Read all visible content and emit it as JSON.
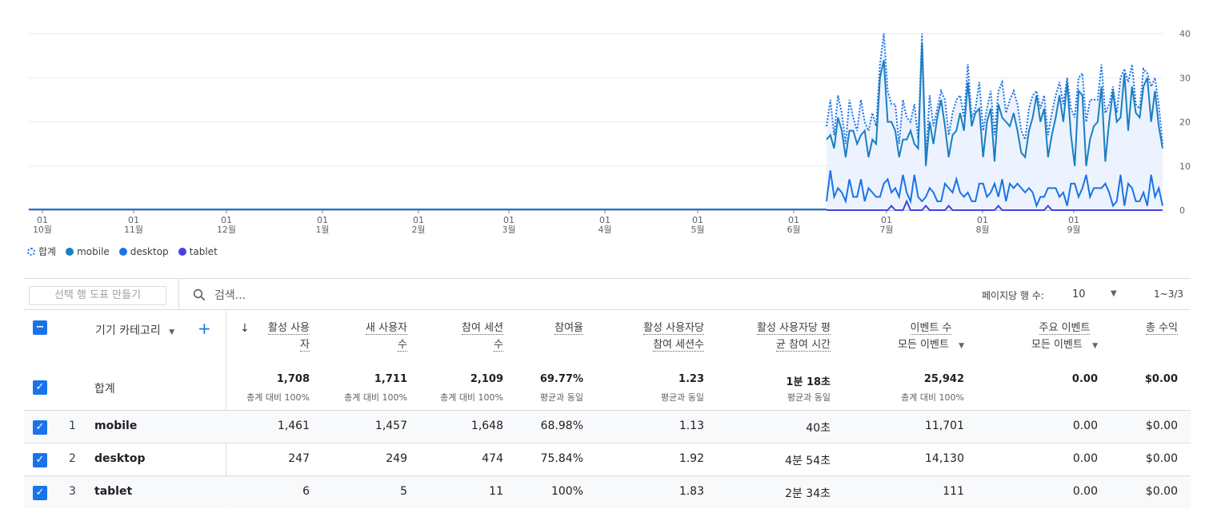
{
  "chart_data": {
    "type": "line",
    "x_ticks": [
      {
        "day": "01",
        "month": "10월"
      },
      {
        "day": "01",
        "month": "11월"
      },
      {
        "day": "01",
        "month": "12월"
      },
      {
        "day": "01",
        "month": "1월"
      },
      {
        "day": "01",
        "month": "2월"
      },
      {
        "day": "01",
        "month": "3월"
      },
      {
        "day": "01",
        "month": "4월"
      },
      {
        "day": "01",
        "month": "5월"
      },
      {
        "day": "01",
        "month": "6월"
      },
      {
        "day": "01",
        "month": "7월"
      },
      {
        "day": "01",
        "month": "8월"
      },
      {
        "day": "01",
        "month": "9월"
      }
    ],
    "y_ticks": [
      "40",
      "30",
      "20",
      "10",
      "0"
    ],
    "ylim": [
      0,
      40
    ],
    "grid": true,
    "legend_position": "bottom-left",
    "series": [
      {
        "name": "합계",
        "color": "#1a73e8",
        "style": "dotted-area",
        "values": [
          19,
          25,
          17,
          26,
          22,
          15,
          25,
          21,
          18,
          25,
          20,
          18,
          22,
          19,
          33,
          40,
          27,
          24,
          24,
          15,
          25,
          21,
          20,
          24,
          16,
          40,
          12,
          26,
          19,
          23,
          27,
          25,
          17,
          22,
          25,
          26,
          21,
          33,
          21,
          23,
          29,
          18,
          23,
          27,
          17,
          27,
          29,
          22,
          25,
          27,
          24,
          18,
          16,
          23,
          26,
          27,
          23,
          26,
          17,
          22,
          26,
          29,
          24,
          30,
          23,
          21,
          30,
          31,
          20,
          25,
          25,
          25,
          33,
          22,
          24,
          28,
          22,
          30,
          32,
          29,
          33,
          24,
          23,
          32,
          31,
          28,
          30,
          24,
          15
        ]
      },
      {
        "name": "mobile",
        "color": "#1a7fc1",
        "style": "solid",
        "values": [
          16,
          17,
          14,
          21,
          18,
          12,
          18,
          18,
          15,
          17,
          18,
          12,
          16,
          15,
          30,
          34,
          20,
          20,
          18,
          12,
          16,
          16,
          18,
          15,
          14,
          38,
          10,
          20,
          15,
          21,
          25,
          19,
          12,
          17,
          18,
          22,
          18,
          29,
          19,
          22,
          23,
          12,
          20,
          23,
          11,
          24,
          21,
          20,
          19,
          22,
          18,
          13,
          12,
          18,
          21,
          26,
          20,
          23,
          12,
          17,
          21,
          26,
          20,
          29,
          17,
          10,
          27,
          26,
          10,
          16,
          19,
          20,
          28,
          11,
          20,
          27,
          20,
          21,
          31,
          18,
          28,
          22,
          21,
          28,
          30,
          20,
          27,
          19,
          14
        ]
      },
      {
        "name": "desktop",
        "color": "#1a73e8",
        "style": "solid",
        "values": [
          2,
          9,
          3,
          5,
          4,
          2,
          7,
          3,
          3,
          7,
          2,
          5,
          4,
          3,
          3,
          6,
          7,
          4,
          5,
          3,
          8,
          4,
          2,
          8,
          3,
          2,
          3,
          5,
          4,
          2,
          2,
          6,
          5,
          4,
          7,
          4,
          3,
          4,
          2,
          2,
          6,
          6,
          3,
          4,
          6,
          3,
          7,
          2,
          6,
          5,
          6,
          5,
          4,
          5,
          4,
          1,
          3,
          3,
          5,
          5,
          5,
          3,
          4,
          1,
          6,
          6,
          3,
          5,
          8,
          3,
          5,
          5,
          5,
          6,
          4,
          1,
          2,
          8,
          1,
          6,
          5,
          2,
          2,
          4,
          1,
          8,
          3,
          5,
          1
        ]
      },
      {
        "name": "tablet",
        "color": "#4a3fe0",
        "style": "solid",
        "values": [
          0,
          0,
          0,
          0,
          0,
          0,
          0,
          0,
          0,
          0,
          0,
          0,
          0,
          0,
          0,
          0,
          0,
          1,
          0,
          0,
          0,
          2,
          0,
          0,
          0,
          0,
          1,
          0,
          0,
          0,
          0,
          0,
          1,
          0,
          0,
          0,
          0,
          0,
          0,
          0,
          0,
          0,
          0,
          0,
          0,
          1,
          0,
          0,
          0,
          0,
          0,
          0,
          0,
          0,
          0,
          0,
          0,
          0,
          1,
          0,
          0,
          0,
          0,
          0,
          0,
          0,
          0,
          0,
          0,
          0,
          0,
          0,
          0,
          0,
          0,
          0,
          0,
          0,
          0,
          0,
          0,
          0,
          0,
          0,
          0,
          0,
          0,
          0,
          0
        ]
      }
    ]
  },
  "legend": [
    {
      "label": "합계",
      "color": "#1a73e8",
      "dashed": true
    },
    {
      "label": "mobile",
      "color": "#1a7fc1",
      "dashed": false
    },
    {
      "label": "desktop",
      "color": "#1a73e8",
      "dashed": false
    },
    {
      "label": "tablet",
      "color": "#4a3fe0",
      "dashed": false
    }
  ],
  "toolbar": {
    "pivot_label": "선택 행 도표 만들기",
    "search_placeholder": "검색...",
    "rows_per_page_label": "페이지당 행 수:",
    "rows_per_page_value": "10",
    "range": "1~3/3"
  },
  "table": {
    "dimension_header": "기기 카테고리",
    "columns": [
      {
        "line1": "활성 사용",
        "line2": "자"
      },
      {
        "line1": "새 사용자",
        "line2": "수"
      },
      {
        "line1": "참여 세션",
        "line2": "수"
      },
      {
        "line1": "참여율",
        "line2": ""
      },
      {
        "line1": "활성 사용자당",
        "line2": "참여 세션수"
      },
      {
        "line1": "활성 사용자당 평",
        "line2": "균 참여 시간"
      },
      {
        "line1": "이벤트 수",
        "line2": "모든 이벤트"
      },
      {
        "line1": "주요 이벤트",
        "line2": "모든 이벤트"
      },
      {
        "line1": "총 수익",
        "line2": ""
      }
    ],
    "total": {
      "label": "합계",
      "values": [
        "1,708",
        "1,711",
        "2,109",
        "69.77%",
        "1.23",
        "1분 18초",
        "25,942",
        "0.00",
        "$0.00"
      ],
      "subs": [
        "총계 대비 100%",
        "총계 대비 100%",
        "총계 대비 100%",
        "평균과 동일",
        "평균과 동일",
        "평균과 동일",
        "총계 대비 100%",
        "",
        ""
      ]
    },
    "rows": [
      {
        "index": "1",
        "name": "mobile",
        "values": [
          "1,461",
          "1,457",
          "1,648",
          "68.98%",
          "1.13",
          "40초",
          "11,701",
          "0.00",
          "$0.00"
        ]
      },
      {
        "index": "2",
        "name": "desktop",
        "values": [
          "247",
          "249",
          "474",
          "75.84%",
          "1.92",
          "4분 54초",
          "14,130",
          "0.00",
          "$0.00"
        ]
      },
      {
        "index": "3",
        "name": "tablet",
        "values": [
          "6",
          "5",
          "11",
          "100%",
          "1.83",
          "2분 34초",
          "111",
          "0.00",
          "$0.00"
        ]
      }
    ]
  }
}
